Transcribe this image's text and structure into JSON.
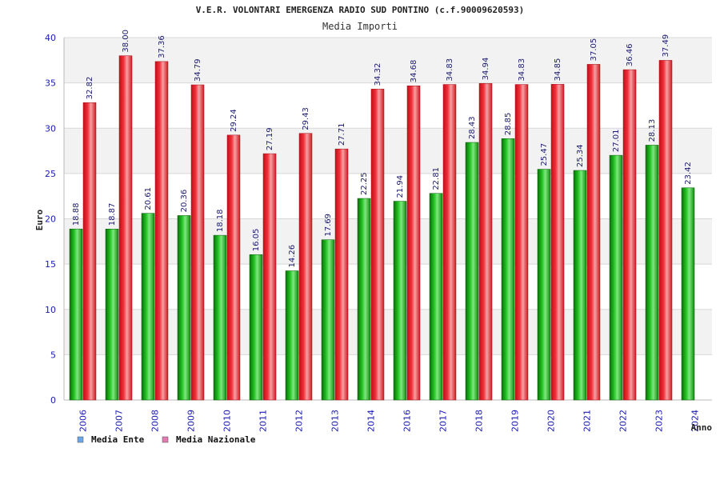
{
  "chart_data": {
    "type": "bar",
    "title": "V.E.R. VOLONTARI EMERGENZA RADIO SUD PONTINO (c.f.90009620593)",
    "subtitle": "Media Importi",
    "xlabel": "Anno",
    "ylabel": "Euro",
    "ylim": [
      0,
      40
    ],
    "yticks": [
      0,
      5,
      10,
      15,
      20,
      25,
      30,
      35,
      40
    ],
    "grid": true,
    "legend_position": "bottom-left",
    "categories": [
      "2006",
      "2007",
      "2008",
      "2009",
      "2010",
      "2011",
      "2012",
      "2013",
      "2014",
      "2016",
      "2017",
      "2018",
      "2019",
      "2020",
      "2021",
      "2022",
      "2023",
      "2024"
    ],
    "series": [
      {
        "name": "Media Ente",
        "color": "#1fb31f",
        "legend_color": "#6aa6e8",
        "values": [
          18.88,
          18.87,
          20.61,
          20.36,
          18.18,
          16.05,
          14.26,
          17.69,
          22.25,
          21.94,
          22.81,
          28.43,
          28.85,
          25.47,
          25.34,
          27.01,
          28.13,
          23.42
        ],
        "labels": [
          "18.88",
          "18.87",
          "20.61",
          "20.36",
          "18.18",
          "16.05",
          "14.26",
          "17.69",
          "22.25",
          "21.94",
          "22.81",
          "28.43",
          "28.85",
          "25.47",
          "25.34",
          "27.01",
          "28.13",
          "23.42"
        ]
      },
      {
        "name": "Media Nazionale",
        "color": "#e8202a",
        "legend_color": "#e07ab0",
        "values": [
          32.82,
          38.0,
          37.36,
          34.79,
          29.24,
          27.19,
          29.43,
          27.71,
          34.32,
          34.68,
          34.83,
          34.94,
          34.83,
          34.85,
          37.05,
          36.46,
          37.49,
          null
        ],
        "labels": [
          "32.82",
          "38.00",
          "37.36",
          "34.79",
          "29.24",
          "27.19",
          "29.43",
          "27.71",
          "34.32",
          "34.68",
          "34.83",
          "34.94",
          "34.83",
          "34.85",
          "37.05",
          "36.46",
          "37.49",
          null
        ]
      }
    ]
  }
}
